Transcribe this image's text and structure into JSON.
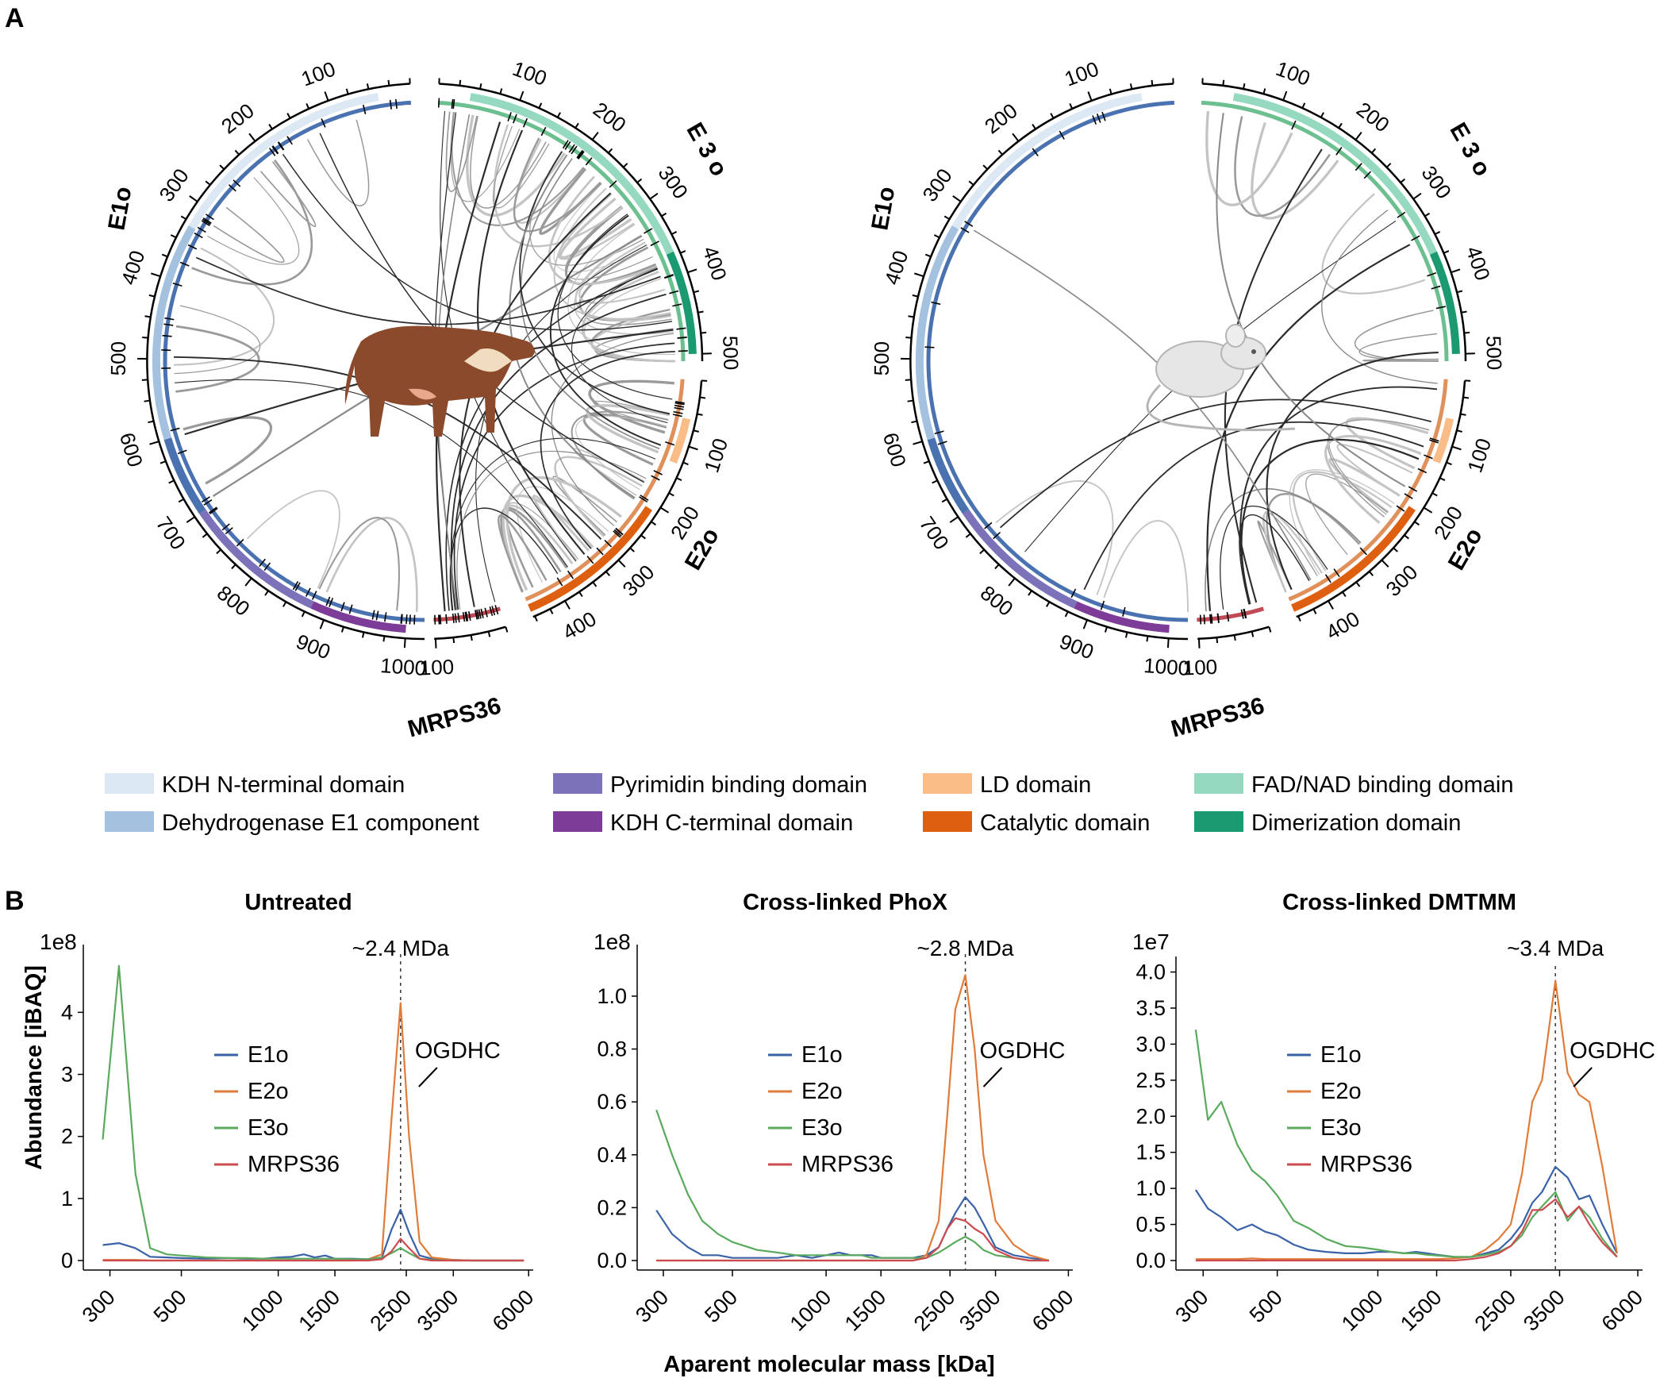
{
  "panel_a": {
    "label": "A",
    "circos": [
      {
        "proteins": {
          "e1o": "E1o",
          "e2o": "E2o",
          "e3o": "E 3 o",
          "mrps36": "MRPS36"
        },
        "organism_icon": "cow-icon"
      },
      {
        "proteins": {
          "e1o": "E1o",
          "e2o": "E2o",
          "e3o": "E 3 o",
          "mrps36": "MRPS36"
        },
        "organism_icon": "mouse-icon"
      }
    ],
    "ticks": {
      "e1o": [
        "100",
        "200",
        "300",
        "400",
        "500",
        "600",
        "700",
        "800",
        "900",
        "1000"
      ],
      "e3o": [
        "100",
        "200",
        "300",
        "400",
        "500"
      ],
      "e2o": [
        "100",
        "200",
        "300",
        "400"
      ],
      "mrps36": [
        "100"
      ]
    },
    "legend": [
      {
        "label": "KDH N-terminal domain",
        "color": "#dce9f4"
      },
      {
        "label": "Dehydrogenase E1 component",
        "color": "#a4c2e0"
      },
      {
        "label": "Pyrimidin binding domain",
        "color": "#7b72ba"
      },
      {
        "label": "KDH C-terminal domain",
        "color": "#7d3c98"
      },
      {
        "label": "LD domain",
        "color": "#fbbd88"
      },
      {
        "label": "Catalytic domain",
        "color": "#de5f10"
      },
      {
        "label": "FAD/NAD binding domain",
        "color": "#94d9c0"
      },
      {
        "label": "Dimerization domain",
        "color": "#1b9a72"
      }
    ]
  },
  "panel_b": {
    "label": "B",
    "ylabel": "Abundance [iBAQ]",
    "xlabel": "Aparent molecular mass [kDa]",
    "annotation": "OGDHC"
  },
  "chart_data": [
    {
      "type": "line",
      "title": "Untreated",
      "exponent_label": "1e8",
      "marker_label": "~2.4 MDa",
      "marker_x": 2400,
      "x_scale": "log",
      "x_ticks": [
        300,
        500,
        1000,
        1500,
        2500,
        3500,
        6000
      ],
      "y_ticks": [
        0,
        1,
        2,
        3,
        4
      ],
      "ylim": [
        0,
        4.9
      ],
      "x": [
        285,
        320,
        360,
        400,
        450,
        500,
        600,
        700,
        800,
        900,
        1000,
        1100,
        1200,
        1300,
        1400,
        1500,
        1700,
        1900,
        2100,
        2250,
        2400,
        2550,
        2750,
        3000,
        3500,
        4000,
        5000,
        5800
      ],
      "series": [
        {
          "name": "E1o",
          "color": "#3a62a8",
          "values": [
            0.25,
            0.28,
            0.2,
            0.06,
            0.05,
            0.04,
            0.03,
            0.04,
            0.03,
            0.03,
            0.05,
            0.06,
            0.1,
            0.05,
            0.08,
            0.03,
            0.03,
            0.02,
            0.05,
            0.5,
            0.82,
            0.45,
            0.08,
            0.03,
            0.01,
            0.0,
            0.0,
            0.0
          ]
        },
        {
          "name": "E2o",
          "color": "#e07b39",
          "values": [
            0.01,
            0.01,
            0.01,
            0.0,
            0.0,
            0.0,
            0.0,
            0.0,
            0.0,
            0.0,
            0.0,
            0.0,
            0.0,
            0.0,
            0.0,
            0.0,
            0.0,
            0.02,
            0.1,
            2.3,
            4.15,
            2.0,
            0.3,
            0.05,
            0.01,
            0.0,
            0.0,
            0.0
          ]
        },
        {
          "name": "E3o",
          "color": "#5aaa5e",
          "values": [
            1.95,
            4.75,
            1.4,
            0.2,
            0.1,
            0.08,
            0.05,
            0.04,
            0.04,
            0.03,
            0.03,
            0.03,
            0.03,
            0.03,
            0.03,
            0.03,
            0.02,
            0.02,
            0.05,
            0.12,
            0.2,
            0.12,
            0.03,
            0.01,
            0.0,
            0.0,
            0.0,
            0.0
          ]
        },
        {
          "name": "MRPS36",
          "color": "#cc4b4f",
          "values": [
            0.0,
            0.0,
            0.0,
            0.0,
            0.0,
            0.0,
            0.0,
            0.0,
            0.0,
            0.0,
            0.0,
            0.0,
            0.0,
            0.0,
            0.0,
            0.0,
            0.0,
            0.0,
            0.02,
            0.15,
            0.35,
            0.2,
            0.03,
            0.0,
            0.0,
            0.0,
            0.0,
            0.0
          ]
        }
      ]
    },
    {
      "type": "line",
      "title": "Cross-linked PhoX",
      "exponent_label": "1e8",
      "marker_label": "~2.8 MDa",
      "marker_x": 2800,
      "x_scale": "log",
      "x_ticks": [
        300,
        500,
        1000,
        1500,
        2500,
        3500,
        6000
      ],
      "y_ticks": [
        "0.0",
        "0.2",
        "0.4",
        "0.6",
        "0.8",
        "1.0"
      ],
      "ylim": [
        0,
        1.15
      ],
      "x": [
        285,
        320,
        360,
        400,
        450,
        500,
        600,
        700,
        800,
        900,
        1000,
        1100,
        1200,
        1300,
        1400,
        1500,
        1700,
        1900,
        2100,
        2300,
        2450,
        2600,
        2800,
        3000,
        3200,
        3500,
        4000,
        4500,
        5200
      ],
      "series": [
        {
          "name": "E1o",
          "color": "#3a62a8",
          "values": [
            0.19,
            0.1,
            0.05,
            0.02,
            0.02,
            0.01,
            0.01,
            0.01,
            0.02,
            0.01,
            0.02,
            0.03,
            0.02,
            0.02,
            0.02,
            0.01,
            0.01,
            0.01,
            0.02,
            0.05,
            0.12,
            0.18,
            0.24,
            0.2,
            0.14,
            0.05,
            0.02,
            0.01,
            0.0
          ]
        },
        {
          "name": "E2o",
          "color": "#e07b39",
          "values": [
            0.0,
            0.0,
            0.0,
            0.0,
            0.0,
            0.0,
            0.0,
            0.0,
            0.0,
            0.0,
            0.0,
            0.0,
            0.0,
            0.0,
            0.0,
            0.0,
            0.0,
            0.0,
            0.02,
            0.15,
            0.55,
            0.95,
            1.08,
            0.8,
            0.4,
            0.15,
            0.06,
            0.02,
            0.0
          ]
        },
        {
          "name": "E3o",
          "color": "#5aaa5e",
          "values": [
            0.57,
            0.4,
            0.25,
            0.15,
            0.1,
            0.07,
            0.04,
            0.03,
            0.02,
            0.02,
            0.02,
            0.02,
            0.02,
            0.02,
            0.01,
            0.01,
            0.01,
            0.01,
            0.01,
            0.03,
            0.05,
            0.07,
            0.09,
            0.07,
            0.04,
            0.02,
            0.01,
            0.0,
            0.0
          ]
        },
        {
          "name": "MRPS36",
          "color": "#cc4b4f",
          "values": [
            0.0,
            0.0,
            0.0,
            0.0,
            0.0,
            0.0,
            0.0,
            0.0,
            0.0,
            0.0,
            0.0,
            0.0,
            0.0,
            0.0,
            0.0,
            0.0,
            0.0,
            0.0,
            0.01,
            0.05,
            0.12,
            0.16,
            0.15,
            0.12,
            0.1,
            0.04,
            0.01,
            0.0,
            0.0
          ]
        }
      ]
    },
    {
      "type": "line",
      "title": "Cross-linked DMTMM",
      "exponent_label": "1e7",
      "marker_label": "~3.4 MDa",
      "marker_x": 3400,
      "x_scale": "log",
      "x_ticks": [
        300,
        500,
        1000,
        1500,
        2500,
        3500,
        6000
      ],
      "y_ticks": [
        "0.0",
        "0.5",
        "1.0",
        "1.5",
        "2.0",
        "2.5",
        "3.0",
        "3.5",
        "4.0"
      ],
      "ylim": [
        0,
        4.05
      ],
      "x": [
        285,
        310,
        340,
        380,
        420,
        460,
        500,
        560,
        620,
        700,
        800,
        900,
        1000,
        1100,
        1200,
        1300,
        1400,
        1500,
        1700,
        1900,
        2100,
        2300,
        2500,
        2700,
        2900,
        3100,
        3400,
        3700,
        4000,
        4300,
        4700,
        5200
      ],
      "series": [
        {
          "name": "E1o",
          "color": "#3a62a8",
          "values": [
            0.98,
            0.72,
            0.6,
            0.42,
            0.5,
            0.4,
            0.35,
            0.22,
            0.15,
            0.12,
            0.1,
            0.1,
            0.12,
            0.12,
            0.1,
            0.12,
            0.1,
            0.08,
            0.05,
            0.05,
            0.1,
            0.15,
            0.3,
            0.5,
            0.8,
            0.95,
            1.3,
            1.15,
            0.85,
            0.9,
            0.5,
            0.1
          ]
        },
        {
          "name": "E2o",
          "color": "#e07b39",
          "values": [
            0.02,
            0.02,
            0.02,
            0.02,
            0.03,
            0.02,
            0.02,
            0.02,
            0.02,
            0.02,
            0.02,
            0.02,
            0.02,
            0.02,
            0.02,
            0.02,
            0.02,
            0.02,
            0.03,
            0.05,
            0.15,
            0.3,
            0.5,
            1.2,
            2.2,
            2.5,
            3.88,
            2.6,
            2.3,
            2.2,
            1.3,
            0.1
          ]
        },
        {
          "name": "E3o",
          "color": "#5aaa5e",
          "values": [
            3.2,
            1.95,
            2.2,
            1.6,
            1.25,
            1.1,
            0.9,
            0.55,
            0.45,
            0.3,
            0.2,
            0.18,
            0.15,
            0.12,
            0.1,
            0.1,
            0.08,
            0.07,
            0.05,
            0.05,
            0.08,
            0.12,
            0.2,
            0.35,
            0.6,
            0.75,
            0.95,
            0.55,
            0.75,
            0.6,
            0.3,
            0.05
          ]
        },
        {
          "name": "MRPS36",
          "color": "#cc4b4f",
          "values": [
            0.0,
            0.0,
            0.0,
            0.0,
            0.0,
            0.0,
            0.0,
            0.0,
            0.0,
            0.0,
            0.0,
            0.0,
            0.0,
            0.0,
            0.0,
            0.0,
            0.0,
            0.0,
            0.0,
            0.02,
            0.05,
            0.1,
            0.2,
            0.4,
            0.7,
            0.7,
            0.85,
            0.6,
            0.75,
            0.5,
            0.25,
            0.05
          ]
        }
      ]
    }
  ]
}
